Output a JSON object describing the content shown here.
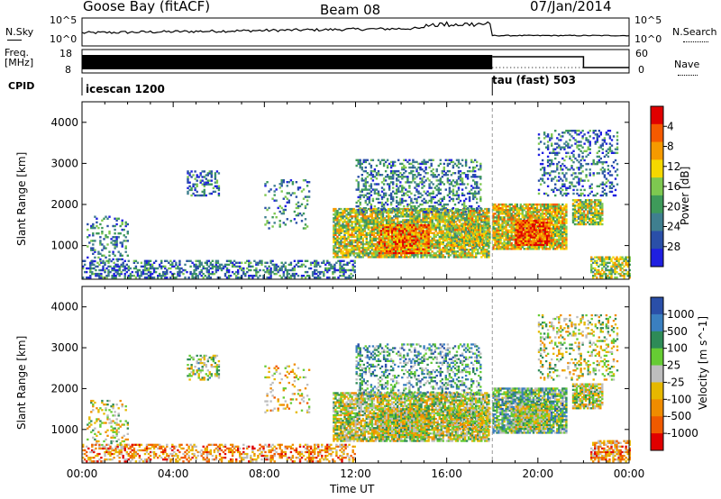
{
  "header": {
    "station": "Goose Bay (fitACF)",
    "beam": "Beam 08",
    "date": "07/Jan/2014"
  },
  "left_labels": {
    "nsky": "N.Sky",
    "freq_line1": "Freq.",
    "freq_line2": "[MHz]",
    "cpid": "CPID"
  },
  "right_labels": {
    "nsearch": "N.Search",
    "nave": "Nave"
  },
  "noise_panel": {
    "left_ticks": [
      "10^5",
      "10^0"
    ],
    "right_ticks": [
      "10^5",
      "10^0"
    ]
  },
  "freq_panel": {
    "left_ticks": [
      "18",
      "8"
    ],
    "right_ticks": [
      "60",
      "0"
    ]
  },
  "cpid_panel": {
    "modes": [
      {
        "label": "icescan 1200",
        "start_hour": 0
      },
      {
        "label": "tau (fast) 503",
        "start_hour": 18
      }
    ]
  },
  "colors": {
    "power_scale": [
      "#1f1fe0",
      "#2a4fa8",
      "#3f7f8f",
      "#3e9a5a",
      "#7ec850",
      "#f5d800",
      "#f59a00",
      "#f55a00",
      "#e00000"
    ],
    "velocity_scale": [
      "#2a4fa8",
      "#3a7fc0",
      "#2e8b57",
      "#66cc33",
      "#bdbdbd",
      "#e6b800",
      "#f08c00",
      "#f05a00",
      "#e00000"
    ],
    "ground_scatter": "#c0c0c0"
  },
  "chart_data": [
    {
      "type": "heatmap",
      "title": "Power",
      "xlabel": "",
      "ylabel": "Slant Range [km]",
      "x_ticks": [],
      "xlim_hours": [
        0,
        24
      ],
      "ylim": [
        180,
        4500
      ],
      "y_ticks": [
        "1000",
        "2000",
        "3000",
        "4000"
      ],
      "y_tick_values": [
        1000,
        2000,
        3000,
        4000
      ],
      "colorbar": {
        "label": "Power [dB]",
        "ticks": [
          "4",
          "8",
          "12",
          "16",
          "20",
          "24",
          "28"
        ],
        "range": [
          0,
          30
        ]
      },
      "scatter_regions": [
        {
          "t0": 0.2,
          "t1": 2.0,
          "r0": 600,
          "r1": 1700,
          "density": 0.25,
          "level": 0.3
        },
        {
          "t0": 0.0,
          "t1": 12.0,
          "r0": 200,
          "r1": 650,
          "density": 0.45,
          "level": 0.25
        },
        {
          "t0": 4.6,
          "t1": 6.0,
          "r0": 2200,
          "r1": 2800,
          "density": 0.4,
          "level": 0.25
        },
        {
          "t0": 8.0,
          "t1": 10.0,
          "r0": 1400,
          "r1": 2600,
          "density": 0.15,
          "level": 0.3
        },
        {
          "t0": 11.0,
          "t1": 17.8,
          "r0": 700,
          "r1": 1900,
          "density": 0.8,
          "level": 0.55
        },
        {
          "t0": 13.0,
          "t1": 15.2,
          "r0": 800,
          "r1": 1500,
          "density": 0.9,
          "level": 0.75
        },
        {
          "t0": 16.0,
          "t1": 17.9,
          "r0": 1000,
          "r1": 1500,
          "density": 0.7,
          "level": 0.55
        },
        {
          "t0": 12.0,
          "t1": 17.5,
          "r0": 1800,
          "r1": 3100,
          "density": 0.35,
          "level": 0.3
        },
        {
          "t0": 18.0,
          "t1": 21.2,
          "r0": 900,
          "r1": 2000,
          "density": 0.85,
          "level": 0.6
        },
        {
          "t0": 19.0,
          "t1": 20.5,
          "r0": 1000,
          "r1": 1600,
          "density": 0.9,
          "level": 0.85
        },
        {
          "t0": 21.5,
          "t1": 22.8,
          "r0": 1500,
          "r1": 2100,
          "density": 0.8,
          "level": 0.55
        },
        {
          "t0": 20.0,
          "t1": 23.5,
          "r0": 2200,
          "r1": 3800,
          "density": 0.25,
          "level": 0.25
        },
        {
          "t0": 22.3,
          "t1": 24.0,
          "r0": 200,
          "r1": 700,
          "density": 0.6,
          "level": 0.55
        }
      ]
    },
    {
      "type": "heatmap",
      "title": "Velocity",
      "xlabel": "Time UT",
      "ylabel": "Slant Range [km]",
      "x_ticks": [
        "00:00",
        "04:00",
        "08:00",
        "12:00",
        "16:00",
        "20:00",
        "00:00"
      ],
      "x_tick_hours": [
        0,
        4,
        8,
        12,
        16,
        20,
        24
      ],
      "xlim_hours": [
        0,
        24
      ],
      "ylim": [
        180,
        4500
      ],
      "y_ticks": [
        "1000",
        "2000",
        "3000",
        "4000"
      ],
      "y_tick_values": [
        1000,
        2000,
        3000,
        4000
      ],
      "colorbar": {
        "label": "Velocity [m s^-1]",
        "ticks": [
          "1000",
          "500",
          "100",
          "25",
          "-25",
          "-100",
          "-500",
          "-1000"
        ],
        "range": [
          -1000,
          1000
        ]
      },
      "scatter_regions": [
        {
          "t0": 0.2,
          "t1": 2.0,
          "r0": 600,
          "r1": 1700,
          "density": 0.25,
          "level": 0.5
        },
        {
          "t0": 0.0,
          "t1": 12.0,
          "r0": 200,
          "r1": 650,
          "density": 0.45,
          "level": 0.7
        },
        {
          "t0": 4.6,
          "t1": 6.0,
          "r0": 2200,
          "r1": 2800,
          "density": 0.4,
          "level": 0.45
        },
        {
          "t0": 8.0,
          "t1": 10.0,
          "r0": 1400,
          "r1": 2600,
          "density": 0.15,
          "level": 0.6
        },
        {
          "t0": 11.0,
          "t1": 17.8,
          "r0": 700,
          "r1": 1900,
          "density": 0.8,
          "level": 0.5
        },
        {
          "t0": 13.0,
          "t1": 15.2,
          "r0": 800,
          "r1": 1500,
          "density": 0.9,
          "level": 0.5
        },
        {
          "t0": 16.0,
          "t1": 17.9,
          "r0": 1000,
          "r1": 1500,
          "density": 0.7,
          "level": 0.5
        },
        {
          "t0": 12.0,
          "t1": 17.5,
          "r0": 1800,
          "r1": 3100,
          "density": 0.35,
          "level": 0.3
        },
        {
          "t0": 18.0,
          "t1": 21.2,
          "r0": 900,
          "r1": 2000,
          "density": 0.85,
          "level": 0.35
        },
        {
          "t0": 19.0,
          "t1": 20.5,
          "r0": 1000,
          "r1": 1600,
          "density": 0.9,
          "level": 0.5
        },
        {
          "t0": 21.5,
          "t1": 22.8,
          "r0": 1500,
          "r1": 2100,
          "density": 0.8,
          "level": 0.5
        },
        {
          "t0": 20.0,
          "t1": 23.5,
          "r0": 2200,
          "r1": 3800,
          "density": 0.25,
          "level": 0.5
        },
        {
          "t0": 22.3,
          "t1": 24.0,
          "r0": 200,
          "r1": 700,
          "density": 0.6,
          "level": 0.7
        }
      ]
    }
  ]
}
